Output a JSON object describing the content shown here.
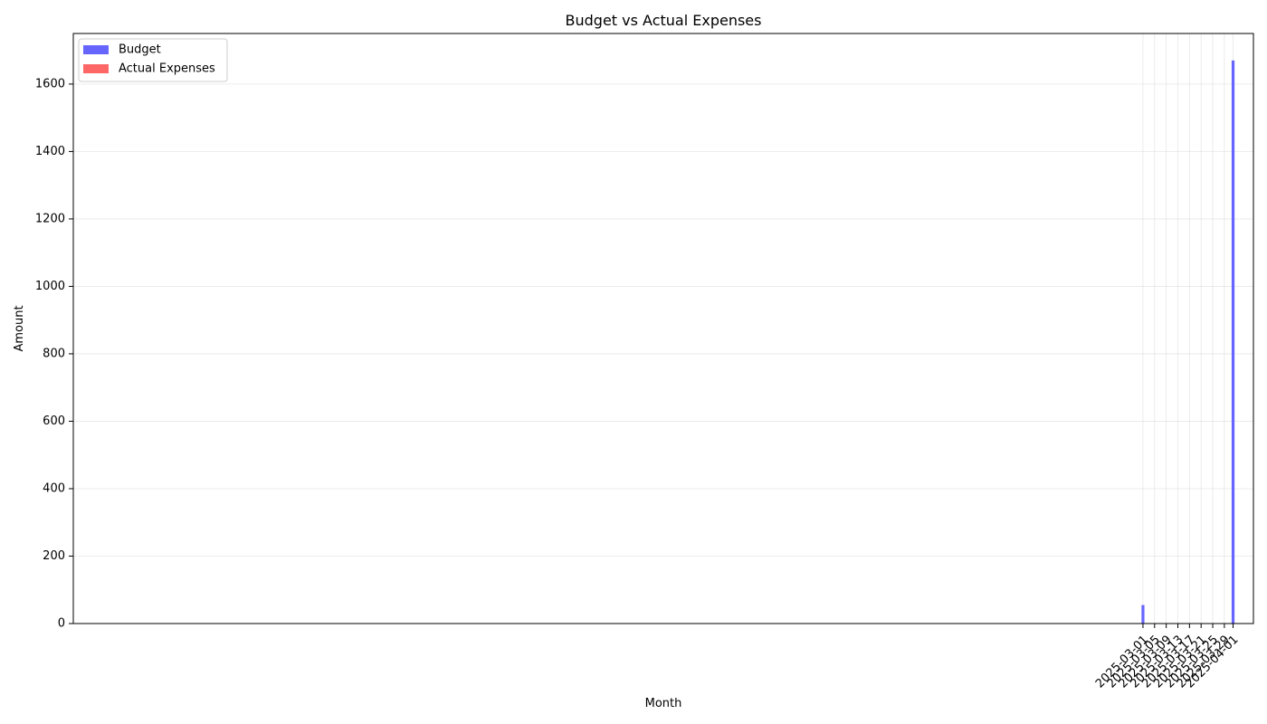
{
  "chart_data": {
    "type": "bar",
    "title": "Budget vs Actual Expenses",
    "xlabel": "Month",
    "ylabel": "Amount",
    "x_axis": {
      "type": "date",
      "range": [
        "2024-02-27",
        "2025-04-08"
      ],
      "tick_labels": [
        "2025-03-01",
        "2025-03-05",
        "2025-03-09",
        "2025-03-13",
        "2025-03-17",
        "2025-03-21",
        "2025-03-25",
        "2025-03-29",
        "2025-04-01"
      ]
    },
    "y_axis": {
      "range": [
        0,
        1750
      ],
      "tick_values": [
        0,
        200,
        400,
        600,
        800,
        1000,
        1200,
        1400,
        1600
      ]
    },
    "grid": true,
    "legend_position": "top-left",
    "series": [
      {
        "name": "Budget",
        "color": "#6666ff",
        "points": [
          {
            "x": "2025-03-01",
            "y": 55
          },
          {
            "x": "2025-04-01",
            "y": 1670
          }
        ]
      },
      {
        "name": "Actual Expenses",
        "color": "#ff6666",
        "points": [
          {
            "x": "2025-03-01",
            "y": 0
          },
          {
            "x": "2025-04-01",
            "y": 0
          }
        ]
      }
    ]
  }
}
